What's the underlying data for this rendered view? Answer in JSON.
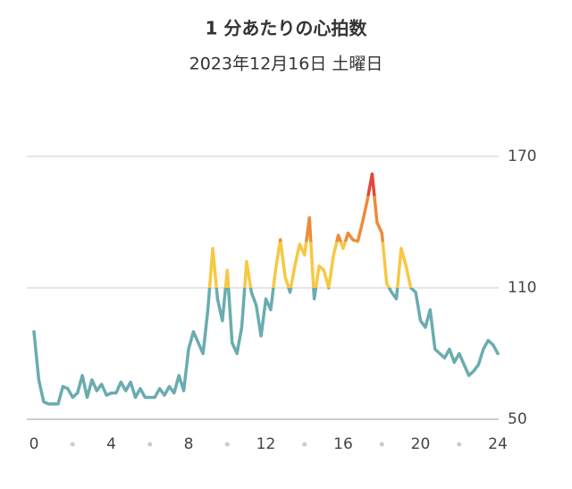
{
  "chart_data": {
    "type": "line",
    "title": "1 分あたりの心拍数",
    "subtitle": "2023年12月16日 土曜日",
    "x": [
      0,
      0.25,
      0.5,
      0.75,
      1,
      1.25,
      1.5,
      1.75,
      2,
      2.25,
      2.5,
      2.75,
      3,
      3.25,
      3.5,
      3.75,
      4,
      4.25,
      4.5,
      4.75,
      5,
      5.25,
      5.5,
      5.75,
      6,
      6.25,
      6.5,
      6.75,
      7,
      7.25,
      7.5,
      7.75,
      8,
      8.25,
      8.5,
      8.75,
      9,
      9.25,
      9.5,
      9.75,
      10,
      10.25,
      10.5,
      10.75,
      11,
      11.25,
      11.5,
      11.75,
      12,
      12.25,
      12.5,
      12.75,
      13,
      13.25,
      13.5,
      13.75,
      14,
      14.25,
      14.5,
      14.75,
      15,
      15.25,
      15.5,
      15.75,
      16,
      16.25,
      16.5,
      16.75,
      17,
      17.25,
      17.5,
      17.75,
      18,
      18.25,
      18.5,
      18.75,
      19,
      19.25,
      19.5,
      19.75,
      20,
      20.25,
      20.5,
      20.75,
      21,
      21.25,
      21.5,
      21.75,
      22,
      22.25,
      22.5,
      22.75,
      23,
      23.25,
      23.5,
      23.75,
      24
    ],
    "series": [
      {
        "values": [
          90,
          68,
          58,
          57,
          57,
          57,
          65,
          64,
          60,
          62,
          70,
          60,
          68,
          63,
          66,
          61,
          62,
          62,
          67,
          63,
          67,
          60,
          64,
          60,
          60,
          60,
          64,
          61,
          65,
          62,
          70,
          63,
          82,
          90,
          85,
          80,
          100,
          128,
          105,
          95,
          118,
          85,
          80,
          92,
          122,
          108,
          102,
          88,
          105,
          100,
          118,
          132,
          115,
          108,
          120,
          130,
          125,
          142,
          105,
          120,
          118,
          110,
          125,
          134,
          128,
          135,
          132,
          131,
          140,
          150,
          162,
          140,
          135,
          112,
          108,
          105,
          128,
          120,
          110,
          108,
          95,
          92,
          100,
          82,
          80,
          78,
          82,
          76,
          80,
          75,
          70,
          72,
          75,
          82,
          86,
          84,
          80
        ]
      }
    ],
    "color_zones": [
      {
        "from": 50,
        "color": "#6aacb0"
      },
      {
        "from": 110,
        "color": "#f7c843"
      },
      {
        "from": 131,
        "color": "#ee8b3a"
      },
      {
        "from": 152,
        "color": "#e0483a"
      }
    ],
    "xlim": [
      0,
      24
    ],
    "xticks": [
      0,
      4,
      8,
      12,
      16,
      20,
      24
    ],
    "xticks_minor": [
      2,
      6,
      10,
      14,
      18,
      22
    ],
    "ylim": [
      50,
      170
    ],
    "yticks": [
      50,
      110,
      170
    ],
    "grid": true
  }
}
